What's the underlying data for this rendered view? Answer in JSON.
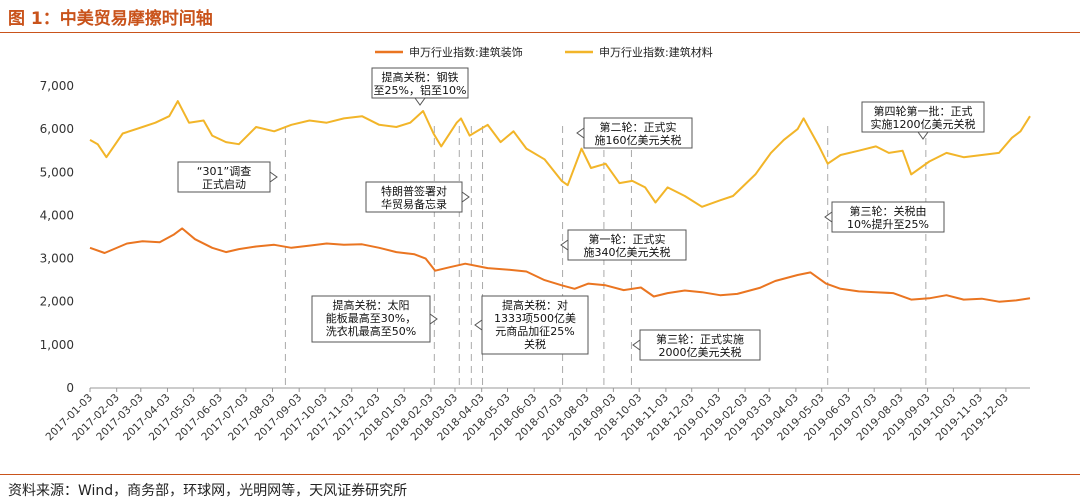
{
  "title": "图 1：中美贸易摩擦时间轴",
  "source": "资料来源：Wind，商务部，环球网，光明网等，天风证券研究所",
  "colors": {
    "accent": "#c9531b",
    "series_orange": "#ea7521",
    "series_gold": "#f2b529"
  },
  "chart_data": {
    "type": "line",
    "ylim": [
      0,
      7000
    ],
    "yticks": [
      "0",
      "1,000",
      "2,000",
      "3,000",
      "4,000",
      "5,000",
      "6,000",
      "7,000"
    ],
    "xlim": [
      "2017-01-03",
      "2019-12-31"
    ],
    "xticks": [
      "2017-01-03",
      "2017-02-03",
      "2017-03-03",
      "2017-04-03",
      "2017-05-03",
      "2017-06-03",
      "2017-07-03",
      "2017-08-03",
      "2017-09-03",
      "2017-10-03",
      "2017-11-03",
      "2017-12-03",
      "2018-01-03",
      "2018-02-03",
      "2018-03-03",
      "2018-04-03",
      "2018-05-03",
      "2018-06-03",
      "2018-07-03",
      "2018-08-03",
      "2018-09-03",
      "2018-10-03",
      "2018-11-03",
      "2018-12-03",
      "2019-01-03",
      "2019-02-03",
      "2019-03-03",
      "2019-04-03",
      "2019-05-03",
      "2019-06-03",
      "2019-07-03",
      "2019-08-03",
      "2019-09-03",
      "2019-10-03",
      "2019-11-03",
      "2019-12-03"
    ],
    "legend_position": "top",
    "series": [
      {
        "name": "申万行业指数:建筑装饰",
        "points": [
          [
            "2017-01-03",
            3250
          ],
          [
            "2017-01-20",
            3130
          ],
          [
            "2017-02-15",
            3350
          ],
          [
            "2017-03-05",
            3400
          ],
          [
            "2017-03-25",
            3380
          ],
          [
            "2017-04-10",
            3550
          ],
          [
            "2017-04-20",
            3700
          ],
          [
            "2017-05-05",
            3450
          ],
          [
            "2017-05-25",
            3250
          ],
          [
            "2017-06-10",
            3150
          ],
          [
            "2017-06-25",
            3220
          ],
          [
            "2017-07-15",
            3280
          ],
          [
            "2017-08-05",
            3320
          ],
          [
            "2017-08-25",
            3250
          ],
          [
            "2017-09-15",
            3300
          ],
          [
            "2017-10-05",
            3350
          ],
          [
            "2017-10-25",
            3320
          ],
          [
            "2017-11-15",
            3330
          ],
          [
            "2017-12-05",
            3250
          ],
          [
            "2017-12-25",
            3150
          ],
          [
            "2018-01-15",
            3100
          ],
          [
            "2018-01-28",
            3000
          ],
          [
            "2018-02-08",
            2720
          ],
          [
            "2018-02-25",
            2800
          ],
          [
            "2018-03-15",
            2880
          ],
          [
            "2018-04-10",
            2780
          ],
          [
            "2018-05-05",
            2740
          ],
          [
            "2018-05-25",
            2700
          ],
          [
            "2018-06-15",
            2500
          ],
          [
            "2018-07-05",
            2380
          ],
          [
            "2018-07-20",
            2300
          ],
          [
            "2018-08-05",
            2420
          ],
          [
            "2018-08-25",
            2380
          ],
          [
            "2018-09-15",
            2270
          ],
          [
            "2018-10-05",
            2330
          ],
          [
            "2018-10-20",
            2120
          ],
          [
            "2018-11-05",
            2200
          ],
          [
            "2018-11-25",
            2260
          ],
          [
            "2018-12-15",
            2220
          ],
          [
            "2019-01-05",
            2150
          ],
          [
            "2019-01-25",
            2180
          ],
          [
            "2019-02-20",
            2320
          ],
          [
            "2019-03-10",
            2480
          ],
          [
            "2019-04-05",
            2620
          ],
          [
            "2019-04-20",
            2680
          ],
          [
            "2019-05-08",
            2420
          ],
          [
            "2019-05-25",
            2300
          ],
          [
            "2019-06-15",
            2240
          ],
          [
            "2019-07-05",
            2220
          ],
          [
            "2019-07-25",
            2200
          ],
          [
            "2019-08-15",
            2050
          ],
          [
            "2019-09-05",
            2080
          ],
          [
            "2019-09-25",
            2150
          ],
          [
            "2019-10-15",
            2050
          ],
          [
            "2019-11-05",
            2070
          ],
          [
            "2019-11-25",
            2000
          ],
          [
            "2019-12-15",
            2030
          ],
          [
            "2019-12-31",
            2080
          ]
        ]
      },
      {
        "name": "申万行业指数:建筑材料",
        "points": [
          [
            "2017-01-03",
            5750
          ],
          [
            "2017-01-12",
            5650
          ],
          [
            "2017-01-22",
            5350
          ],
          [
            "2017-02-10",
            5900
          ],
          [
            "2017-03-05",
            6050
          ],
          [
            "2017-03-20",
            6150
          ],
          [
            "2017-04-05",
            6300
          ],
          [
            "2017-04-15",
            6650
          ],
          [
            "2017-04-28",
            6150
          ],
          [
            "2017-05-15",
            6200
          ],
          [
            "2017-05-25",
            5850
          ],
          [
            "2017-06-10",
            5700
          ],
          [
            "2017-06-25",
            5650
          ],
          [
            "2017-07-15",
            6050
          ],
          [
            "2017-08-05",
            5950
          ],
          [
            "2017-08-25",
            6100
          ],
          [
            "2017-09-15",
            6200
          ],
          [
            "2017-10-05",
            6150
          ],
          [
            "2017-10-25",
            6250
          ],
          [
            "2017-11-15",
            6300
          ],
          [
            "2017-12-05",
            6100
          ],
          [
            "2017-12-25",
            6050
          ],
          [
            "2018-01-10",
            6150
          ],
          [
            "2018-01-25",
            6420
          ],
          [
            "2018-02-06",
            5900
          ],
          [
            "2018-02-15",
            5600
          ],
          [
            "2018-03-05",
            6150
          ],
          [
            "2018-03-10",
            6250
          ],
          [
            "2018-03-20",
            5850
          ],
          [
            "2018-04-10",
            6100
          ],
          [
            "2018-04-25",
            5700
          ],
          [
            "2018-05-10",
            5950
          ],
          [
            "2018-05-25",
            5550
          ],
          [
            "2018-06-15",
            5300
          ],
          [
            "2018-07-05",
            4800
          ],
          [
            "2018-07-12",
            4700
          ],
          [
            "2018-07-28",
            5550
          ],
          [
            "2018-08-08",
            5100
          ],
          [
            "2018-08-25",
            5200
          ],
          [
            "2018-09-10",
            4750
          ],
          [
            "2018-09-25",
            4800
          ],
          [
            "2018-10-10",
            4650
          ],
          [
            "2018-10-22",
            4300
          ],
          [
            "2018-11-05",
            4650
          ],
          [
            "2018-11-25",
            4450
          ],
          [
            "2018-12-15",
            4200
          ],
          [
            "2019-01-05",
            4350
          ],
          [
            "2019-01-20",
            4450
          ],
          [
            "2019-02-15",
            4950
          ],
          [
            "2019-03-05",
            5450
          ],
          [
            "2019-03-20",
            5750
          ],
          [
            "2019-04-05",
            6000
          ],
          [
            "2019-04-12",
            6250
          ],
          [
            "2019-04-30",
            5600
          ],
          [
            "2019-05-10",
            5200
          ],
          [
            "2019-05-25",
            5400
          ],
          [
            "2019-06-15",
            5500
          ],
          [
            "2019-07-05",
            5600
          ],
          [
            "2019-07-20",
            5450
          ],
          [
            "2019-08-05",
            5500
          ],
          [
            "2019-08-15",
            4950
          ],
          [
            "2019-09-05",
            5250
          ],
          [
            "2019-09-25",
            5450
          ],
          [
            "2019-10-15",
            5350
          ],
          [
            "2019-11-05",
            5400
          ],
          [
            "2019-11-25",
            5450
          ],
          [
            "2019-12-10",
            5800
          ],
          [
            "2019-12-20",
            5950
          ],
          [
            "2019-12-31",
            6300
          ]
        ]
      }
    ],
    "events": [
      {
        "date": "2017-08-18",
        "lines": [
          "“301”调查",
          "正式启动"
        ]
      },
      {
        "date": "2018-03-08",
        "lines": [
          "提高关税：钢铁",
          "至25%，铝至10%"
        ]
      },
      {
        "date": "2018-03-22",
        "lines": [
          "特朗普签署对",
          "华贸易备忘录"
        ]
      },
      {
        "date": "2018-02-07",
        "lines": [
          "提高关税：太阳",
          "能板最高至30%，",
          "洗衣机最高至50%"
        ]
      },
      {
        "date": "2018-04-04",
        "lines": [
          "提高关税：对",
          "1333项500亿美",
          "元商品加征25%",
          "关税"
        ]
      },
      {
        "date": "2018-07-06",
        "lines": [
          "第一轮：正式实",
          "施340亿美元关税"
        ]
      },
      {
        "date": "2018-08-23",
        "lines": [
          "第二轮：正式实",
          "施160亿美元关税"
        ]
      },
      {
        "date": "2018-09-24",
        "lines": [
          "第三轮：正式实施",
          "2000亿美元关税"
        ]
      },
      {
        "date": "2019-05-10",
        "lines": [
          "第三轮：关税由",
          "10%提升至25%"
        ]
      },
      {
        "date": "2019-09-01",
        "lines": [
          "第四轮第一批：正式",
          "实施1200亿美元关税"
        ]
      }
    ]
  }
}
